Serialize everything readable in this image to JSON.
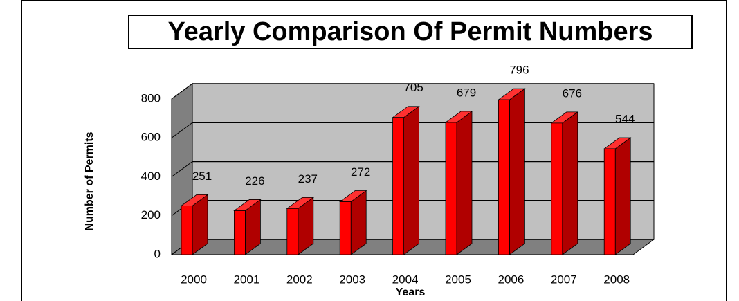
{
  "chart_data": {
    "type": "bar3d",
    "title": "Yearly Comparison Of Permit Numbers",
    "x_label": "Years",
    "y_label": "Number of Permits",
    "categories": [
      "2000",
      "2001",
      "2002",
      "2003",
      "2004",
      "2005",
      "2006",
      "2007",
      "2008"
    ],
    "values": [
      251,
      226,
      237,
      272,
      705,
      679,
      796,
      676,
      544
    ],
    "color": "#ff0000",
    "ylim": [
      0,
      800
    ],
    "yticks": [
      0,
      200,
      400,
      600,
      800
    ],
    "grid": true
  }
}
